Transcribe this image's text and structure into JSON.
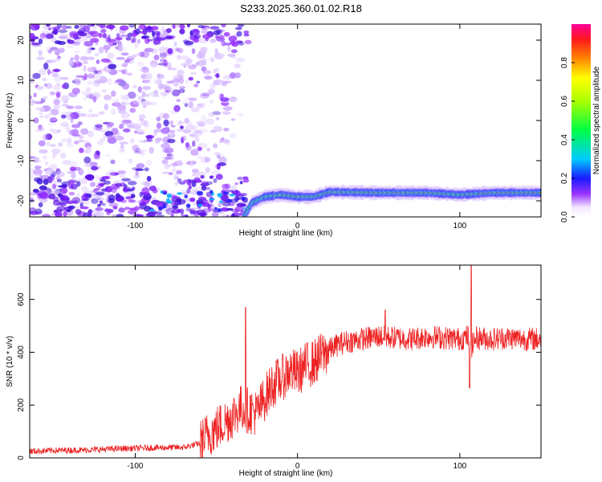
{
  "title": "S233.2025.360.01.02.R18",
  "chart_data": [
    {
      "type": "heatmap",
      "xlabel": "Height of straight line (km)",
      "ylabel": "Frequency (Hz)",
      "xlim": [
        -165,
        150
      ],
      "ylim": [
        -24,
        24
      ],
      "xticks": [
        "-100",
        "0",
        "100"
      ],
      "yticks": [
        "-20",
        "-10",
        "0",
        "10",
        "20"
      ],
      "colorbar": {
        "label": "Normalized spectral amplitude",
        "range": [
          0,
          1
        ],
        "ticks": [
          "0.0",
          "0.2",
          "0.4",
          "0.6",
          "0.8"
        ]
      },
      "ridge": {
        "description_points": [
          [
            -33,
            -24
          ],
          [
            -28,
            -20.5
          ],
          [
            -20,
            -19
          ],
          [
            -10,
            -18.5
          ],
          [
            0,
            -19
          ],
          [
            10,
            -19
          ],
          [
            20,
            -17.8
          ],
          [
            50,
            -18
          ],
          [
            80,
            -18
          ],
          [
            100,
            -18.5
          ],
          [
            120,
            -18
          ],
          [
            150,
            -18
          ]
        ]
      }
    },
    {
      "type": "line",
      "xlabel": "Height of straight line (km)",
      "ylabel": "SNR (10 * v/v)",
      "xlim": [
        -165,
        150
      ],
      "ylim": [
        0,
        730
      ],
      "xticks": [
        "-100",
        "0",
        "100"
      ],
      "yticks": [
        "0",
        "200",
        "400",
        "600"
      ],
      "series": [
        {
          "color": "#ee2222",
          "x": [
            -165,
            -150,
            -130,
            -110,
            -90,
            -70,
            -60,
            -55,
            -50,
            -45,
            -40,
            -35,
            -30,
            -25,
            -20,
            -15,
            -10,
            -5,
            0,
            5,
            10,
            15,
            20,
            25,
            30,
            40,
            50,
            60,
            70,
            80,
            90,
            100,
            105,
            107,
            110,
            120,
            130,
            140,
            150
          ],
          "values": [
            25,
            28,
            30,
            35,
            38,
            40,
            55,
            90,
            110,
            135,
            160,
            190,
            180,
            170,
            230,
            280,
            300,
            330,
            320,
            350,
            360,
            390,
            410,
            430,
            440,
            450,
            460,
            455,
            450,
            460,
            455,
            450,
            460,
            420,
            455,
            450,
            455,
            450,
            450
          ]
        }
      ]
    }
  ]
}
